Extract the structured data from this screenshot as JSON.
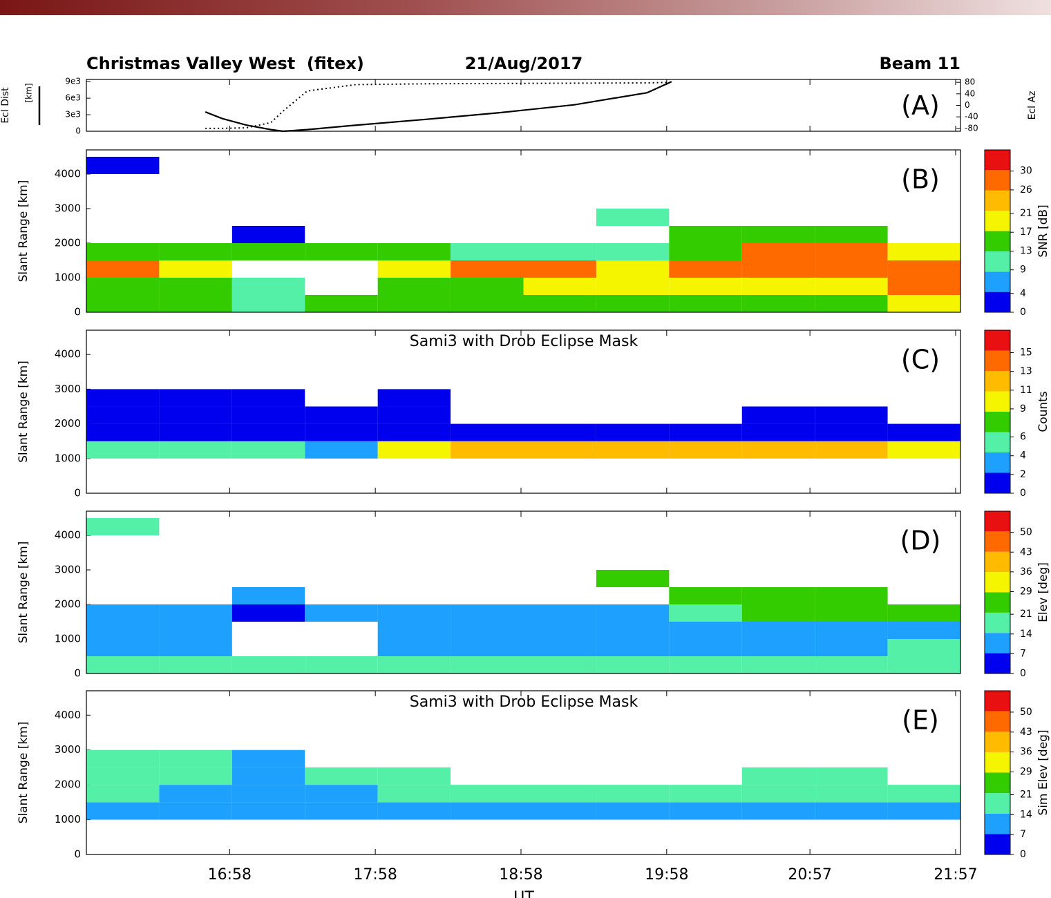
{
  "header": {
    "title": "Christmas Valley West  (fitex)",
    "date": "21/Aug/2017",
    "beam": "Beam 11"
  },
  "colormap": [
    "#0000ee",
    "#1ea0ff",
    "#55f0a8",
    "#33cc00",
    "#f5f500",
    "#ffbb00",
    "#ff6a00",
    "#e81010"
  ],
  "chart_data": [
    {
      "type": "line",
      "panel_label": "(A)",
      "ylabel": "Ecl Dist",
      "ylabel_unit": "[km]",
      "y2label": "Ecl Az",
      "x": [
        1008,
        1015,
        1025,
        1035,
        1040,
        1050,
        1070,
        1100,
        1130,
        1160,
        1190,
        1200
      ],
      "ylim": [
        0,
        9400
      ],
      "yticks": [
        0,
        {
          "value": 3000,
          "label": "3e3"
        },
        {
          "value": 6000,
          "label": "6e3"
        },
        {
          "value": 9000,
          "label": "9e3"
        }
      ],
      "y2lim": [
        -90,
        90
      ],
      "y2ticks": [
        -80,
        -40,
        0,
        40,
        80
      ],
      "series": [
        {
          "color": "#000000",
          "style": "solid",
          "values": [
            3500,
            2300,
            1100,
            300,
            0,
            300,
            1100,
            2200,
            3400,
            4800,
            7000,
            9000
          ]
        },
        {
          "color": "#000000",
          "style": "dotted",
          "axis": "y2",
          "values": [
            -80,
            -80,
            -78,
            -60,
            -20,
            50,
            72,
            75,
            76,
            77,
            78,
            80
          ]
        }
      ]
    },
    {
      "type": "heatmap",
      "panel_label": "(B)",
      "ylabel": "Slant Range [km]",
      "colorbar_label": "SNR [dB]",
      "x_edges": [
        959,
        989,
        1019,
        1049,
        1079,
        1109,
        1139,
        1169,
        1199,
        1229,
        1259,
        1289,
        1319
      ],
      "y_edges": [
        0,
        500,
        1000,
        1500,
        2000,
        2500,
        3000,
        3500,
        4000,
        4500
      ],
      "ylim": [
        0,
        4700
      ],
      "yticks": [
        0,
        1000,
        2000,
        3000,
        4000
      ],
      "clim": [
        0,
        34.5
      ],
      "cticks": [
        0,
        4,
        9,
        13,
        17,
        21,
        26,
        30
      ],
      "values": [
        [
          13,
          13,
          9,
          13,
          13,
          13,
          13,
          13,
          13,
          17,
          17,
          21
        ],
        [
          17,
          13,
          9,
          null,
          13,
          17,
          21,
          21,
          21,
          21,
          21,
          26
        ],
        [
          26,
          21,
          null,
          null,
          21,
          26,
          26,
          21,
          26,
          30,
          30,
          30
        ],
        [
          13,
          17,
          17,
          17,
          13,
          9,
          9,
          9,
          13,
          26,
          26,
          21
        ],
        [
          null,
          null,
          4,
          null,
          null,
          null,
          null,
          null,
          13,
          17,
          13,
          null
        ],
        [
          null,
          null,
          null,
          null,
          null,
          null,
          null,
          9,
          null,
          null,
          null,
          null
        ],
        [
          null,
          null,
          null,
          null,
          null,
          null,
          null,
          null,
          null,
          null,
          null,
          null
        ],
        [
          null,
          null,
          null,
          null,
          null,
          null,
          null,
          null,
          null,
          null,
          null,
          null
        ],
        [
          4,
          null,
          null,
          null,
          null,
          null,
          null,
          null,
          null,
          null,
          null,
          null
        ]
      ]
    },
    {
      "type": "heatmap",
      "panel_label": "(C)",
      "subtitle": "Sami3 with Drob Eclipse Mask",
      "ylabel": "Slant Range [km]",
      "colorbar_label": "Counts",
      "x_edges": [
        959,
        989,
        1019,
        1049,
        1079,
        1109,
        1139,
        1169,
        1199,
        1229,
        1259,
        1289,
        1319
      ],
      "y_edges": [
        0,
        500,
        1000,
        1500,
        2000,
        2500,
        3000,
        3500,
        4000,
        4500
      ],
      "ylim": [
        0,
        4700
      ],
      "yticks": [
        0,
        1000,
        2000,
        3000,
        4000
      ],
      "clim": [
        0,
        17.4
      ],
      "cticks": [
        0,
        2,
        4,
        6,
        9,
        11,
        13,
        15
      ],
      "values": [
        [
          null,
          null,
          null,
          null,
          null,
          null,
          null,
          null,
          null,
          null,
          null,
          null
        ],
        [
          null,
          null,
          null,
          null,
          null,
          null,
          null,
          null,
          null,
          null,
          null,
          null
        ],
        [
          6,
          6,
          6,
          4,
          9,
          11,
          11,
          11,
          11,
          11,
          13,
          9
        ],
        [
          1,
          2,
          2,
          1,
          1,
          1,
          1,
          1,
          1,
          1,
          1,
          1
        ],
        [
          1,
          1,
          1,
          1,
          1,
          null,
          null,
          null,
          null,
          1,
          1,
          null
        ],
        [
          1,
          1,
          1,
          null,
          1,
          null,
          null,
          null,
          null,
          null,
          null,
          null
        ],
        [
          null,
          null,
          null,
          null,
          null,
          null,
          null,
          null,
          null,
          null,
          null,
          null
        ],
        [
          null,
          null,
          null,
          null,
          null,
          null,
          null,
          null,
          null,
          null,
          null,
          null
        ],
        [
          null,
          null,
          null,
          null,
          null,
          null,
          null,
          null,
          null,
          null,
          null,
          null
        ]
      ]
    },
    {
      "type": "heatmap",
      "panel_label": "(D)",
      "ylabel": "Slant Range [km]",
      "colorbar_label": "Elev [deg]",
      "x_edges": [
        959,
        989,
        1019,
        1049,
        1079,
        1109,
        1139,
        1169,
        1199,
        1229,
        1259,
        1289,
        1319
      ],
      "y_edges": [
        0,
        500,
        1000,
        1500,
        2000,
        2500,
        3000,
        3500,
        4000,
        4500
      ],
      "ylim": [
        0,
        4700
      ],
      "yticks": [
        0,
        1000,
        2000,
        3000,
        4000
      ],
      "clim": [
        0,
        57.5
      ],
      "cticks": [
        0,
        7,
        14,
        21,
        29,
        36,
        43,
        50
      ],
      "values": [
        [
          17,
          17,
          17,
          17,
          17,
          17,
          17,
          17,
          17,
          17,
          17,
          17
        ],
        [
          10,
          10,
          null,
          null,
          10,
          14,
          14,
          12,
          12,
          10,
          10,
          18
        ],
        [
          12,
          8,
          null,
          null,
          10,
          12,
          12,
          12,
          12,
          12,
          12,
          10
        ],
        [
          12,
          8,
          5,
          8,
          12,
          12,
          12,
          12,
          18,
          24,
          24,
          25
        ],
        [
          null,
          null,
          8,
          null,
          null,
          null,
          null,
          null,
          24,
          24,
          24,
          null
        ],
        [
          null,
          null,
          null,
          null,
          null,
          null,
          null,
          24,
          null,
          null,
          null,
          null
        ],
        [
          null,
          null,
          null,
          null,
          null,
          null,
          null,
          null,
          null,
          null,
          null,
          null
        ],
        [
          null,
          null,
          null,
          null,
          null,
          null,
          null,
          null,
          null,
          null,
          null,
          null
        ],
        [
          17,
          null,
          null,
          null,
          null,
          null,
          null,
          null,
          null,
          null,
          null,
          null
        ]
      ]
    },
    {
      "type": "heatmap",
      "panel_label": "(E)",
      "subtitle": "Sami3 with Drob Eclipse Mask",
      "ylabel": "Slant Range [km]",
      "colorbar_label": "Sim Elev [deg]",
      "xlabel": "UT",
      "xlim": [
        959,
        1319
      ],
      "xticks": [
        {
          "value": 1018,
          "label": "16:58"
        },
        {
          "value": 1078,
          "label": "17:58"
        },
        {
          "value": 1138,
          "label": "18:58"
        },
        {
          "value": 1198,
          "label": "19:58"
        },
        {
          "value": 1257,
          "label": "20:57"
        },
        {
          "value": 1317,
          "label": "21:57"
        }
      ],
      "x_edges": [
        959,
        989,
        1019,
        1049,
        1079,
        1109,
        1139,
        1169,
        1199,
        1229,
        1259,
        1289,
        1319
      ],
      "y_edges": [
        0,
        500,
        1000,
        1500,
        2000,
        2500,
        3000,
        3500,
        4000,
        4500
      ],
      "ylim": [
        0,
        4700
      ],
      "yticks": [
        0,
        1000,
        2000,
        3000,
        4000
      ],
      "clim": [
        0,
        57.5
      ],
      "cticks": [
        0,
        7,
        14,
        21,
        29,
        36,
        43,
        50
      ],
      "values": [
        [
          null,
          null,
          null,
          null,
          null,
          null,
          null,
          null,
          null,
          null,
          null,
          null
        ],
        [
          null,
          null,
          null,
          null,
          null,
          null,
          null,
          null,
          null,
          null,
          null,
          null
        ],
        [
          10,
          10,
          10,
          10,
          10,
          10,
          10,
          10,
          10,
          10,
          10,
          10
        ],
        [
          17,
          10,
          10,
          10,
          17,
          17,
          17,
          17,
          17,
          17,
          17,
          17
        ],
        [
          17,
          17,
          10,
          17,
          17,
          null,
          null,
          null,
          null,
          17,
          17,
          null
        ],
        [
          17,
          17,
          10,
          null,
          null,
          null,
          null,
          null,
          null,
          null,
          null,
          null
        ],
        [
          null,
          null,
          null,
          null,
          null,
          null,
          null,
          null,
          null,
          null,
          null,
          null
        ],
        [
          null,
          null,
          null,
          null,
          null,
          null,
          null,
          null,
          null,
          null,
          null,
          null
        ],
        [
          null,
          null,
          null,
          null,
          null,
          null,
          null,
          null,
          null,
          null,
          null,
          null
        ]
      ]
    }
  ]
}
